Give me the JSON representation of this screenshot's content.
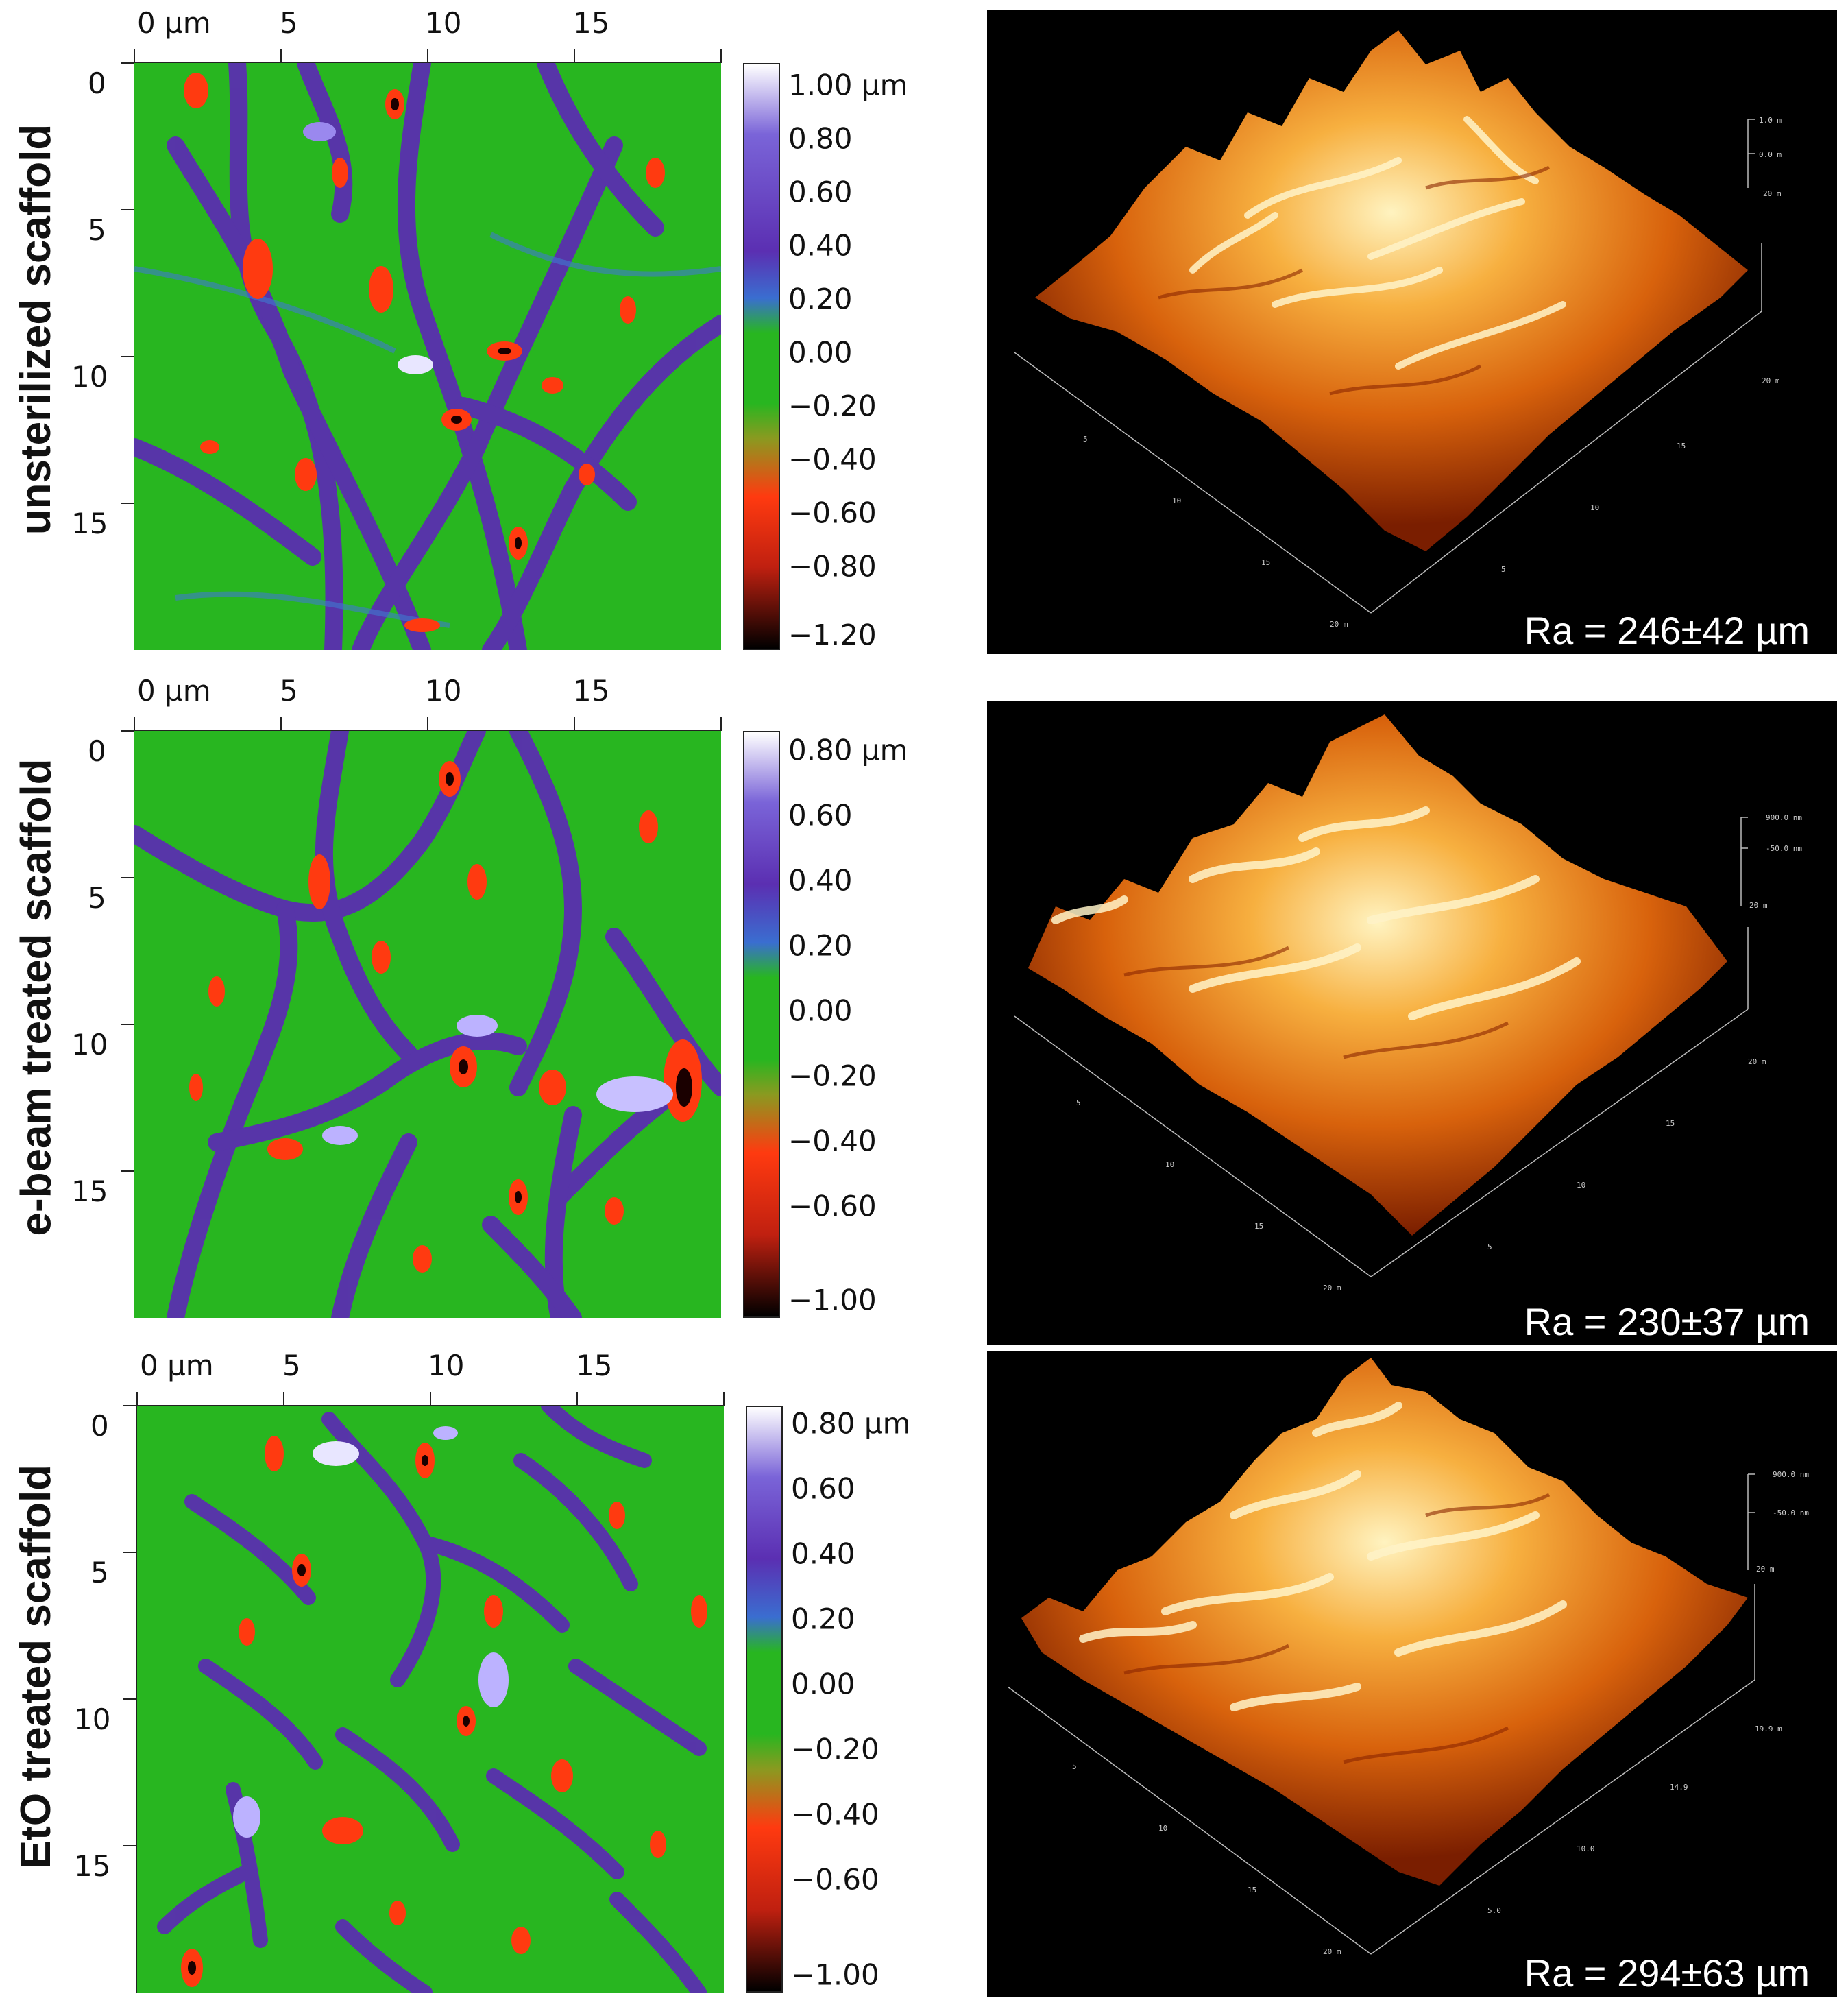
{
  "panels": [
    {
      "label": "unsterilized scaffold",
      "x_ticks": [
        "0 µm",
        "5",
        "10",
        "15"
      ],
      "y_ticks": [
        "0",
        "5",
        "10",
        "15"
      ],
      "colorbar_labels": [
        "1.00 µm",
        "0.80",
        "0.60",
        "0.40",
        "0.20",
        "0.00",
        "−0.20",
        "−0.40",
        "−0.60",
        "−0.80",
        "−1.20"
      ],
      "roughness": "Ra = 246±42 µm",
      "z_scale": [
        "1.0 m",
        "0.0 m",
        "20 m"
      ],
      "axis_ticks_3d": [
        "5",
        "10",
        "15",
        "20 m",
        "15",
        "10",
        "5",
        "20 m"
      ]
    },
    {
      "label": "e-beam treated scaffold",
      "x_ticks": [
        "0 µm",
        "5",
        "10",
        "15"
      ],
      "y_ticks": [
        "0",
        "5",
        "10",
        "15"
      ],
      "colorbar_labels": [
        "0.80 µm",
        "0.60",
        "0.40",
        "0.20",
        "0.00",
        "−0.20",
        "−0.40",
        "−0.60",
        "−1.00"
      ],
      "roughness": "Ra = 230±37 µm",
      "z_scale": [
        "900.0 nm",
        "-50.0 nm",
        "20 m"
      ],
      "axis_ticks_3d": [
        "5",
        "10",
        "15",
        "20 m",
        "15",
        "10",
        "5",
        "20 m"
      ]
    },
    {
      "label": "EtO treated scaffold",
      "x_ticks": [
        "0 µm",
        "5",
        "10",
        "15"
      ],
      "y_ticks": [
        "0",
        "5",
        "10",
        "15"
      ],
      "colorbar_labels": [
        "0.80 µm",
        "0.60",
        "0.40",
        "0.20",
        "0.00",
        "−0.20",
        "−0.40",
        "−0.60",
        "−1.00"
      ],
      "roughness": "Ra = 294±63 µm",
      "z_scale": [
        "900.0 nm",
        "-50.0 nm",
        "20 m"
      ],
      "axis_ticks_3d": [
        "5",
        "10",
        "15",
        "20 m",
        "14.9",
        "10.0",
        "5.0",
        "19.9 m"
      ]
    }
  ],
  "colors": {
    "map_background": "#28b620",
    "map_ridges": "#5a2fb0",
    "map_pits": "#ff3a10",
    "render_background": "#000000",
    "render_surface": "#e07a10",
    "render_highlight": "#fff0b0"
  }
}
